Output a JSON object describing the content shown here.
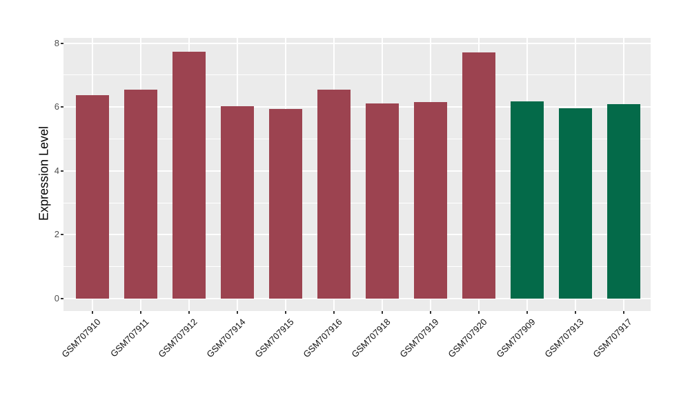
{
  "chart_data": {
    "type": "bar",
    "title": "",
    "xlabel": "",
    "ylabel": "Expression Level",
    "ylim": [
      0,
      8
    ],
    "yticks": [
      0,
      2,
      4,
      6,
      8
    ],
    "yticks_minor": [
      1,
      3,
      5,
      7
    ],
    "grid": true,
    "legend_position": "none",
    "categories": [
      "GSM707910",
      "GSM707911",
      "GSM707912",
      "GSM707914",
      "GSM707915",
      "GSM707916",
      "GSM707918",
      "GSM707919",
      "GSM707920",
      "GSM707909",
      "GSM707913",
      "GSM707917"
    ],
    "values": [
      6.38,
      6.54,
      7.74,
      6.03,
      5.94,
      6.54,
      6.11,
      6.16,
      7.7,
      6.18,
      5.96,
      6.1
    ],
    "bar_colors": [
      "#9C4350",
      "#9C4350",
      "#9C4350",
      "#9C4350",
      "#9C4350",
      "#9C4350",
      "#9C4350",
      "#9C4350",
      "#9C4350",
      "#046A49",
      "#046A49",
      "#046A49"
    ],
    "colors": {
      "group_red": "#9C4350",
      "group_green": "#046A49",
      "panel_background": "#EBEBEB",
      "gridline": "#FFFFFF",
      "axis_text": "#4D4D4D",
      "axis_title": "#000000",
      "tick_mark": "#333333"
    }
  }
}
